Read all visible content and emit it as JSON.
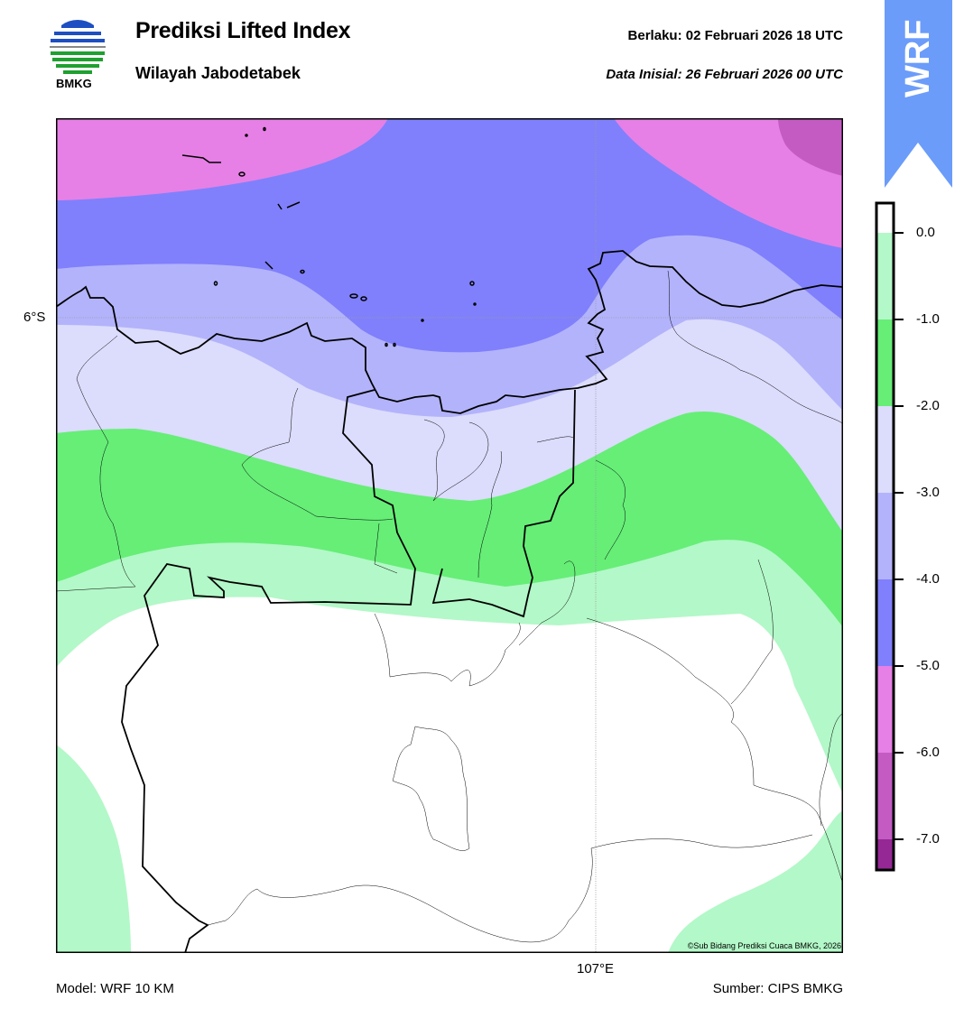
{
  "header": {
    "logo_text": "BMKG",
    "title": "Prediksi Lifted Index",
    "subtitle": "Wilayah Jabodetabek",
    "valid_time": "Berlaku:  02 Februari 2026 18 UTC",
    "init_time": "Data Inisial:  26 Februari 2026 00 UTC"
  },
  "banner": {
    "label": "WRF",
    "color": "#6b9cfa"
  },
  "map": {
    "lat_label": "6°S",
    "lon_label": "107°E",
    "copyright": "©Sub Bidang Prediksi Cuaca BMKG, 2026"
  },
  "colorbar": {
    "ticks": [
      "0.0",
      "-1.0",
      "-2.0",
      "-3.0",
      "-4.0",
      "-5.0",
      "-6.0",
      "-7.0"
    ],
    "colors": [
      "#ffffff",
      "#b3f8c8",
      "#66ee77",
      "#dcdcfc",
      "#b3b3fc",
      "#8080fc",
      "#e680e6",
      "#c35bc3",
      "#962896"
    ]
  },
  "footer": {
    "model": "Model: WRF 10 KM",
    "source": "Sumber: CIPS BMKG"
  }
}
